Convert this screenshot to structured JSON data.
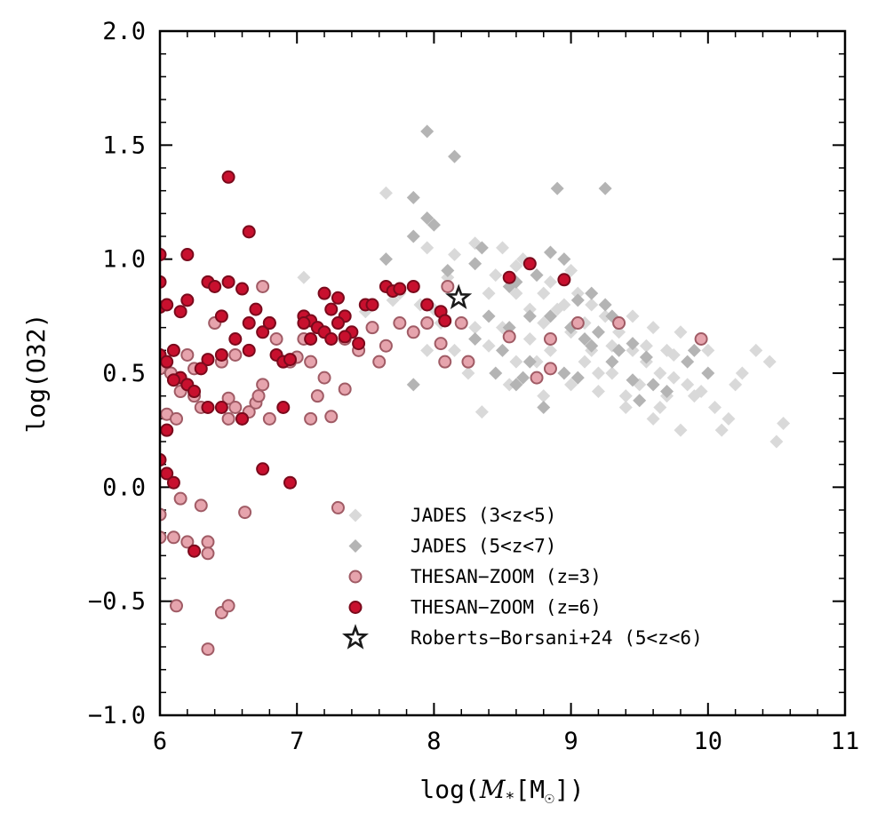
{
  "chart_data": {
    "type": "scatter",
    "title": "",
    "xlabel_prefix": "log(",
    "xlabel_var": "M",
    "xlabel_sub": "*",
    "xlabel_unit": "M",
    "xlabel_unit_symbol": "☉",
    "xlabel_suffix": "])",
    "ylabel": "log(O32)",
    "xlim": [
      6,
      11
    ],
    "ylim": [
      -1.0,
      2.0
    ],
    "xticks": [
      6,
      7,
      8,
      9,
      10,
      11
    ],
    "xtick_labels": [
      "6",
      "7",
      "8",
      "9",
      "10",
      "11"
    ],
    "yticks": [
      -1.0,
      -0.5,
      0.0,
      0.5,
      1.0,
      1.5,
      2.0
    ],
    "ytick_labels": [
      "−1.0",
      "−0.5",
      "0.0",
      "0.5",
      "1.0",
      "1.5",
      "2.0"
    ],
    "legend_position": "lower-right",
    "series": [
      {
        "name": "JADES (3<z<5)",
        "marker": "diamond",
        "color": "#d9d9d9",
        "points": [
          [
            7.05,
            0.92
          ],
          [
            7.65,
            1.29
          ],
          [
            8.3,
            1.07
          ],
          [
            8.45,
            0.93
          ],
          [
            8.6,
            0.97
          ],
          [
            8.7,
            0.78
          ],
          [
            8.8,
            0.72
          ],
          [
            8.95,
            0.8
          ],
          [
            9.05,
            0.85
          ],
          [
            9.25,
            0.75
          ],
          [
            9.35,
            0.68
          ],
          [
            9.45,
            0.6
          ],
          [
            9.55,
            0.55
          ],
          [
            9.65,
            0.5
          ],
          [
            9.75,
            0.48
          ],
          [
            9.85,
            0.45
          ],
          [
            9.95,
            0.42
          ],
          [
            10.05,
            0.35
          ],
          [
            10.15,
            0.3
          ],
          [
            10.25,
            0.5
          ],
          [
            10.35,
            0.6
          ],
          [
            10.45,
            0.55
          ],
          [
            10.55,
            0.28
          ],
          [
            8.35,
            0.33
          ],
          [
            8.55,
            0.45
          ],
          [
            8.75,
            0.55
          ],
          [
            8.85,
            0.6
          ],
          [
            9.15,
            0.6
          ],
          [
            9.3,
            0.5
          ],
          [
            9.5,
            0.45
          ],
          [
            9.7,
            0.4
          ],
          [
            9.9,
            0.4
          ],
          [
            10.1,
            0.25
          ],
          [
            10.5,
            0.2
          ],
          [
            7.5,
            0.77
          ],
          [
            7.75,
            0.85
          ],
          [
            7.9,
            0.8
          ],
          [
            8.05,
            0.72
          ],
          [
            8.15,
            0.6
          ],
          [
            8.25,
            0.5
          ],
          [
            7.95,
            1.05
          ],
          [
            8.15,
            1.02
          ],
          [
            8.5,
            1.05
          ],
          [
            8.65,
            1.0
          ],
          [
            8.85,
            0.9
          ],
          [
            9.0,
            0.95
          ],
          [
            9.15,
            0.8
          ],
          [
            9.45,
            0.75
          ],
          [
            9.6,
            0.7
          ],
          [
            9.8,
            0.68
          ],
          [
            10.0,
            0.6
          ],
          [
            8.4,
            0.62
          ],
          [
            8.6,
            0.55
          ],
          [
            8.8,
            0.4
          ],
          [
            9.0,
            0.45
          ],
          [
            9.2,
            0.5
          ],
          [
            9.4,
            0.4
          ],
          [
            9.6,
            0.3
          ],
          [
            9.8,
            0.25
          ],
          [
            8.3,
            0.7
          ],
          [
            8.7,
            0.65
          ],
          [
            9.0,
            0.68
          ],
          [
            9.3,
            0.62
          ],
          [
            9.55,
            0.62
          ],
          [
            9.75,
            0.58
          ],
          [
            8.5,
            0.7
          ],
          [
            8.9,
            0.78
          ],
          [
            9.1,
            0.72
          ],
          [
            9.4,
            0.35
          ],
          [
            9.7,
            0.6
          ],
          [
            10.2,
            0.45
          ],
          [
            7.7,
            0.82
          ],
          [
            8.0,
            0.78
          ],
          [
            8.4,
            0.85
          ],
          [
            8.8,
            0.85
          ],
          [
            9.2,
            0.42
          ],
          [
            7.95,
            0.6
          ],
          [
            8.1,
            0.92
          ],
          [
            8.6,
            0.85
          ],
          [
            9.1,
            0.55
          ],
          [
            9.65,
            0.35
          ]
        ]
      },
      {
        "name": "JADES (5<z<7)",
        "marker": "diamond",
        "color": "#b4b4b4",
        "points": [
          [
            7.95,
            1.56
          ],
          [
            8.15,
            1.45
          ],
          [
            7.85,
            1.27
          ],
          [
            7.95,
            1.18
          ],
          [
            7.85,
            1.1
          ],
          [
            8.0,
            1.15
          ],
          [
            7.65,
            1.0
          ],
          [
            8.1,
            0.95
          ],
          [
            8.35,
            1.05
          ],
          [
            8.3,
            0.98
          ],
          [
            8.55,
            0.88
          ],
          [
            8.6,
            0.9
          ],
          [
            8.9,
            1.31
          ],
          [
            9.25,
            1.31
          ],
          [
            8.85,
            1.03
          ],
          [
            8.95,
            1.0
          ],
          [
            8.75,
            0.93
          ],
          [
            9.05,
            0.82
          ],
          [
            9.15,
            0.85
          ],
          [
            9.25,
            0.8
          ],
          [
            9.3,
            0.75
          ],
          [
            9.0,
            0.7
          ],
          [
            9.1,
            0.65
          ],
          [
            9.2,
            0.68
          ],
          [
            9.35,
            0.6
          ],
          [
            9.45,
            0.63
          ],
          [
            9.55,
            0.57
          ],
          [
            9.6,
            0.45
          ],
          [
            9.7,
            0.42
          ],
          [
            9.5,
            0.38
          ],
          [
            9.85,
            0.55
          ],
          [
            9.9,
            0.6
          ],
          [
            10.0,
            0.5
          ],
          [
            8.8,
            0.35
          ],
          [
            8.6,
            0.45
          ],
          [
            8.7,
            0.55
          ],
          [
            8.5,
            0.6
          ],
          [
            8.3,
            0.65
          ],
          [
            8.45,
            0.5
          ],
          [
            8.95,
            0.5
          ],
          [
            9.05,
            0.48
          ],
          [
            8.55,
            0.7
          ],
          [
            8.7,
            0.75
          ],
          [
            8.85,
            0.75
          ],
          [
            7.85,
            0.45
          ],
          [
            8.65,
            0.48
          ],
          [
            9.45,
            0.47
          ],
          [
            9.3,
            0.55
          ],
          [
            8.4,
            0.75
          ],
          [
            9.15,
            0.62
          ]
        ]
      },
      {
        "name": "THESAN-ZOOM (z=3)",
        "marker": "circle",
        "color": "#e6a4ad",
        "edge": "#a05b65",
        "points": [
          [
            6.0,
            0.52
          ],
          [
            6.05,
            0.32
          ],
          [
            6.08,
            0.5
          ],
          [
            6.12,
            0.3
          ],
          [
            6.15,
            0.42
          ],
          [
            6.2,
            0.58
          ],
          [
            6.25,
            0.4
          ],
          [
            6.3,
            0.35
          ],
          [
            6.4,
            0.72
          ],
          [
            6.45,
            0.55
          ],
          [
            6.5,
            0.39
          ],
          [
            6.55,
            0.58
          ],
          [
            6.6,
            0.3
          ],
          [
            6.65,
            0.33
          ],
          [
            6.7,
            0.37
          ],
          [
            6.72,
            0.4
          ],
          [
            6.75,
            0.45
          ],
          [
            6.8,
            0.3
          ],
          [
            6.85,
            0.65
          ],
          [
            6.9,
            0.55
          ],
          [
            7.0,
            0.57
          ],
          [
            7.05,
            0.65
          ],
          [
            7.1,
            0.55
          ],
          [
            7.15,
            0.4
          ],
          [
            7.2,
            0.48
          ],
          [
            7.25,
            0.31
          ],
          [
            7.35,
            0.65
          ],
          [
            7.45,
            0.6
          ],
          [
            7.55,
            0.7
          ],
          [
            7.6,
            0.55
          ],
          [
            7.65,
            0.62
          ],
          [
            7.75,
            0.72
          ],
          [
            7.85,
            0.68
          ],
          [
            7.95,
            0.72
          ],
          [
            8.05,
            0.63
          ],
          [
            8.08,
            0.55
          ],
          [
            8.2,
            0.72
          ],
          [
            8.25,
            0.55
          ],
          [
            8.1,
            0.88
          ],
          [
            6.75,
            0.88
          ],
          [
            6.15,
            -0.05
          ],
          [
            6.3,
            -0.08
          ],
          [
            6.0,
            -0.12
          ],
          [
            6.0,
            -0.22
          ],
          [
            6.1,
            -0.22
          ],
          [
            6.2,
            -0.24
          ],
          [
            6.35,
            -0.24
          ],
          [
            6.35,
            -0.29
          ],
          [
            6.45,
            -0.55
          ],
          [
            6.5,
            -0.52
          ],
          [
            6.12,
            -0.52
          ],
          [
            6.35,
            -0.71
          ],
          [
            6.62,
            -0.11
          ],
          [
            7.3,
            -0.09
          ],
          [
            7.35,
            0.43
          ],
          [
            6.25,
            0.52
          ],
          [
            8.55,
            0.66
          ],
          [
            8.85,
            0.65
          ],
          [
            9.05,
            0.72
          ],
          [
            9.35,
            0.72
          ],
          [
            9.95,
            0.65
          ],
          [
            8.85,
            0.52
          ],
          [
            8.75,
            0.48
          ],
          [
            6.05,
            0.25
          ],
          [
            6.5,
            0.3
          ],
          [
            6.55,
            0.35
          ],
          [
            6.95,
            0.55
          ],
          [
            7.1,
            0.3
          ]
        ]
      },
      {
        "name": "THESAN-ZOOM (z=6)",
        "marker": "circle",
        "color": "#c8102e",
        "edge": "#7a0a1c",
        "points": [
          [
            6.5,
            1.36
          ],
          [
            6.65,
            1.12
          ],
          [
            6.2,
            1.02
          ],
          [
            6.0,
            1.02
          ],
          [
            6.0,
            0.9
          ],
          [
            6.0,
            0.79
          ],
          [
            6.05,
            0.8
          ],
          [
            6.15,
            0.77
          ],
          [
            6.2,
            0.82
          ],
          [
            6.35,
            0.9
          ],
          [
            6.4,
            0.88
          ],
          [
            6.45,
            0.75
          ],
          [
            6.5,
            0.9
          ],
          [
            6.55,
            0.65
          ],
          [
            6.6,
            0.87
          ],
          [
            6.65,
            0.72
          ],
          [
            6.7,
            0.78
          ],
          [
            6.75,
            0.68
          ],
          [
            6.8,
            0.72
          ],
          [
            6.85,
            0.58
          ],
          [
            6.45,
            0.58
          ],
          [
            6.35,
            0.56
          ],
          [
            6.65,
            0.6
          ],
          [
            6.9,
            0.55
          ],
          [
            6.95,
            0.56
          ],
          [
            7.05,
            0.75
          ],
          [
            7.1,
            0.73
          ],
          [
            7.15,
            0.7
          ],
          [
            7.2,
            0.68
          ],
          [
            7.25,
            0.78
          ],
          [
            7.3,
            0.83
          ],
          [
            7.35,
            0.75
          ],
          [
            7.4,
            0.68
          ],
          [
            7.45,
            0.63
          ],
          [
            7.5,
            0.8
          ],
          [
            7.55,
            0.8
          ],
          [
            7.65,
            0.88
          ],
          [
            7.7,
            0.86
          ],
          [
            7.75,
            0.87
          ],
          [
            7.85,
            0.88
          ],
          [
            7.95,
            0.8
          ],
          [
            8.05,
            0.77
          ],
          [
            8.08,
            0.73
          ],
          [
            6.0,
            0.58
          ],
          [
            6.05,
            0.55
          ],
          [
            6.1,
            0.6
          ],
          [
            6.15,
            0.48
          ],
          [
            6.2,
            0.45
          ],
          [
            6.25,
            0.42
          ],
          [
            6.3,
            0.52
          ],
          [
            6.35,
            0.35
          ],
          [
            6.45,
            0.35
          ],
          [
            6.6,
            0.3
          ],
          [
            6.9,
            0.35
          ],
          [
            6.1,
            0.47
          ],
          [
            6.05,
            0.25
          ],
          [
            6.0,
            0.12
          ],
          [
            6.05,
            0.06
          ],
          [
            6.1,
            0.02
          ],
          [
            6.25,
            -0.28
          ],
          [
            6.75,
            0.08
          ],
          [
            6.95,
            0.02
          ],
          [
            8.55,
            0.92
          ],
          [
            8.7,
            0.98
          ],
          [
            8.95,
            0.91
          ],
          [
            7.1,
            0.65
          ],
          [
            7.25,
            0.65
          ],
          [
            7.35,
            0.66
          ],
          [
            7.3,
            0.72
          ],
          [
            7.05,
            0.72
          ],
          [
            7.2,
            0.85
          ],
          [
            6.8,
            0.72
          ]
        ]
      },
      {
        "name": "Roberts-Borsani+24 (5<z<6)",
        "marker": "star",
        "color": "#ffffff",
        "edge": "#1a1a1a",
        "points": [
          [
            8.18,
            0.83
          ]
        ]
      }
    ]
  },
  "legend": {
    "items": [
      {
        "label": "JADES (3<z<5)"
      },
      {
        "label": "JADES (5<z<7)"
      },
      {
        "label": "THESAN−ZOOM (z=3)"
      },
      {
        "label": "THESAN−ZOOM (z=6)"
      },
      {
        "label": "Roberts−Borsani+24 (5<z<6)"
      }
    ]
  }
}
